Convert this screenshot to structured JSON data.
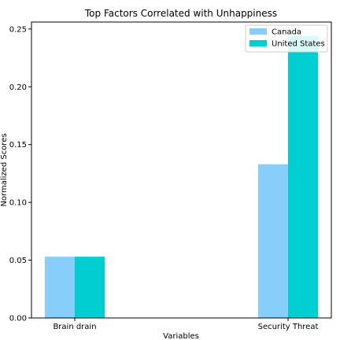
{
  "chart_data": {
    "type": "bar",
    "title": "Top Factors Correlated with Unhappiness",
    "xlabel": "Variables",
    "ylabel": "Normalized Scores",
    "categories": [
      "Brain drain",
      "Security Threat"
    ],
    "series": [
      {
        "name": "Canada",
        "values": [
          0.053,
          0.133
        ],
        "color": "#87cefa"
      },
      {
        "name": "United States",
        "values": [
          0.053,
          0.244
        ],
        "color": "#00ced1"
      }
    ],
    "ylim": [
      0,
      0.256
    ],
    "yticks": [
      "0.00",
      "0.05",
      "0.10",
      "0.15",
      "0.20",
      "0.25"
    ],
    "ytick_values": [
      0,
      0.05,
      0.1,
      0.15,
      0.2,
      0.25
    ],
    "grid": false,
    "legend_position": "top-right"
  }
}
